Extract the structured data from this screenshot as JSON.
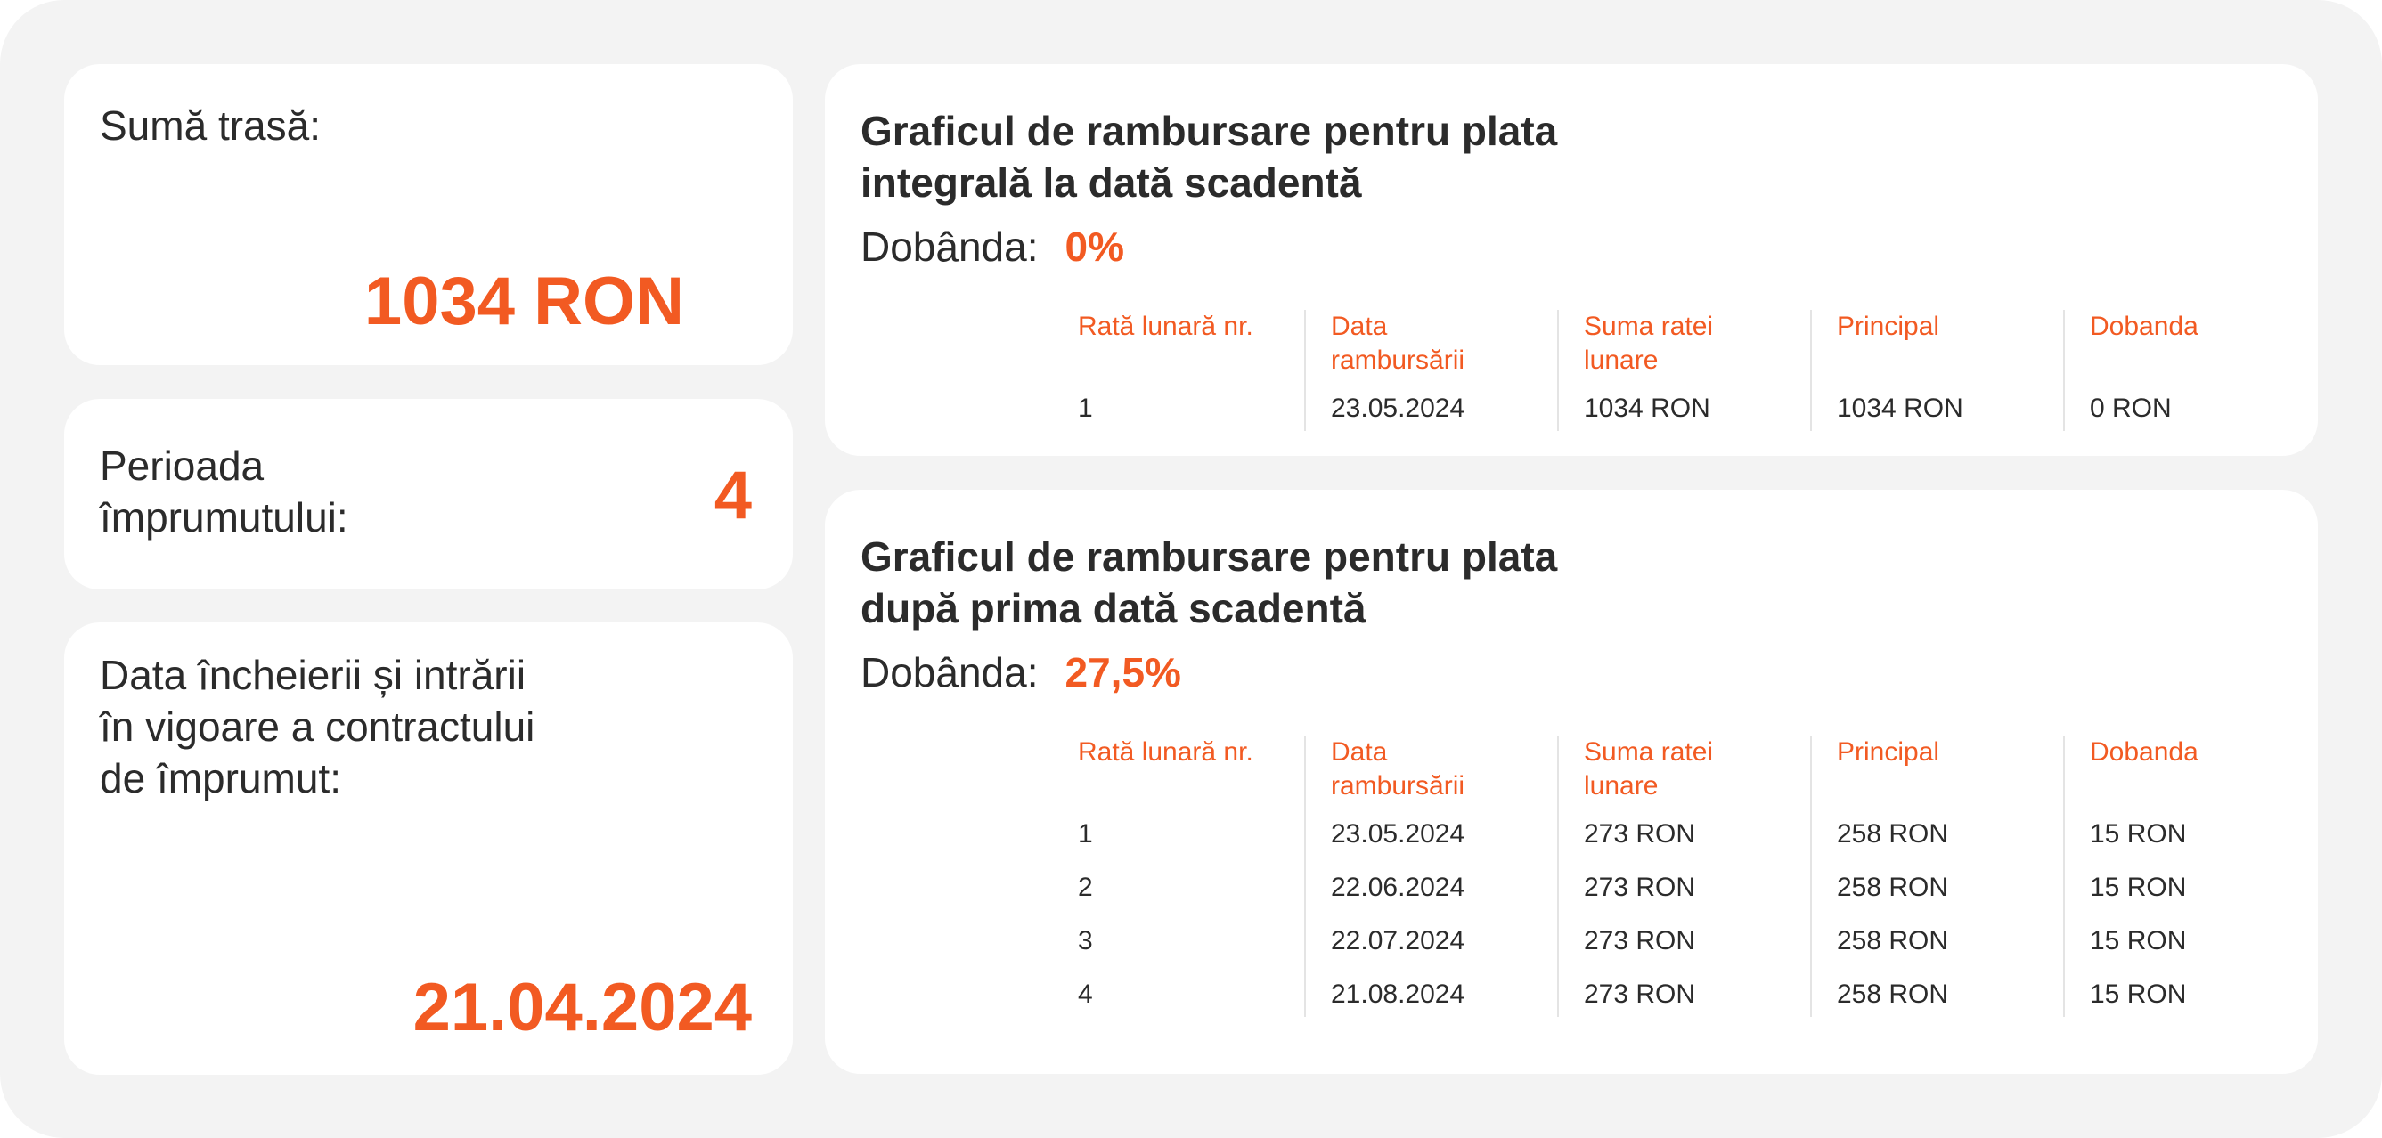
{
  "amount": {
    "label": "Sumă trasă:",
    "value": "1034 RON"
  },
  "period": {
    "label": "Perioada\nîmprumutului:",
    "value": "4"
  },
  "contract_date": {
    "label": "Data încheierii și intrării\nîn vigoare a contractului\nde împrumut:",
    "value": "21.04.2024"
  },
  "schedule_full": {
    "title": "Graficul de rambursare pentru plata integrală la dată scadentă",
    "rate_label": "Dobânda:",
    "rate_value": "0%",
    "columns": [
      "Rată lunară nr.",
      "Data\nrambursării",
      "Suma ratei\nlunare",
      "Principal",
      "Dobanda"
    ],
    "rows": [
      [
        "1",
        "23.05.2024",
        "1034 RON",
        "1034 RON",
        "0 RON"
      ]
    ]
  },
  "schedule_after": {
    "title": "Graficul de rambursare pentru plata după prima dată scadentă",
    "rate_label": "Dobânda:",
    "rate_value": "27,5%",
    "columns": [
      "Rată lunară nr.",
      "Data\nrambursării",
      "Suma ratei\nlunare",
      "Principal",
      "Dobanda"
    ],
    "rows": [
      [
        "1",
        "23.05.2024",
        "273 RON",
        "258 RON",
        "15 RON"
      ],
      [
        "2",
        "22.06.2024",
        "273 RON",
        "258 RON",
        "15 RON"
      ],
      [
        "3",
        "22.07.2024",
        "273 RON",
        "258 RON",
        "15 RON"
      ],
      [
        "4",
        "21.08.2024",
        "273 RON",
        "258 RON",
        "15 RON"
      ]
    ]
  }
}
